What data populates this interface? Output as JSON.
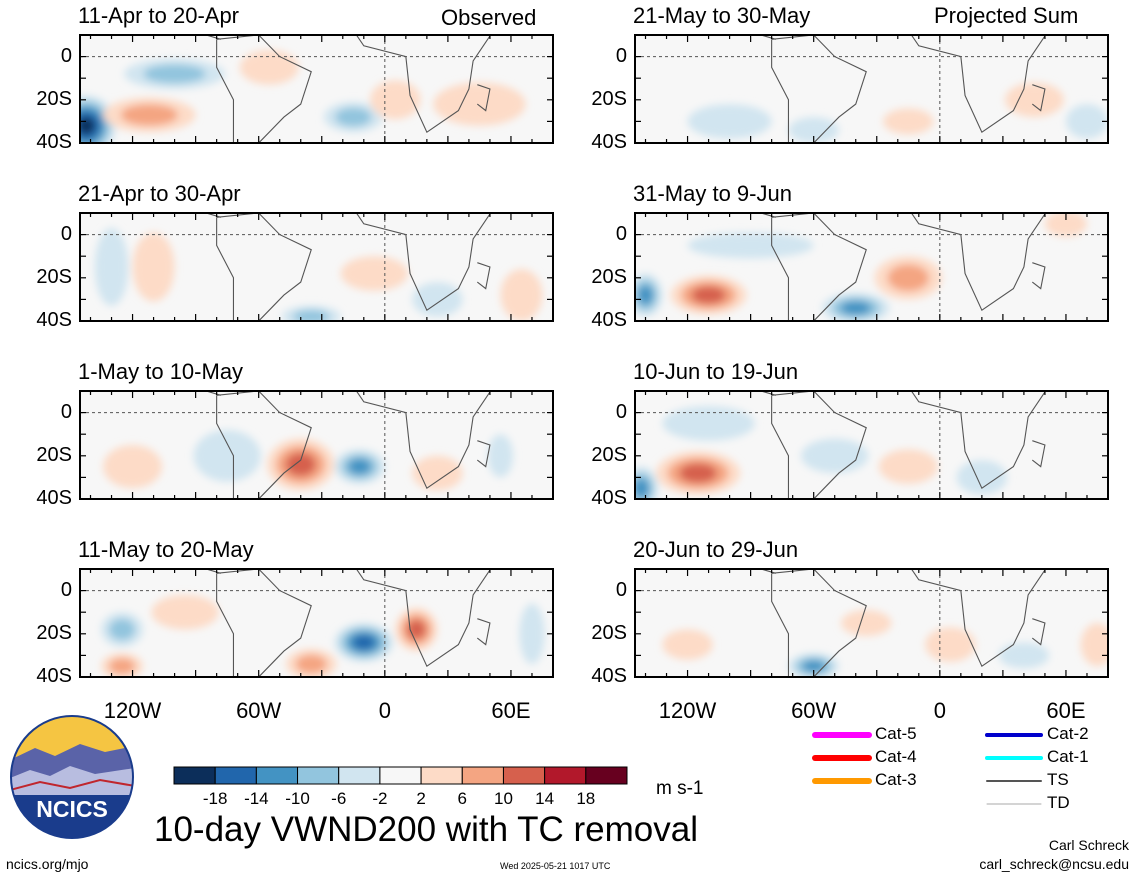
{
  "chart_data": {
    "type": "heatmap",
    "title": "10-day VWND200 with TC removal",
    "units": "m s-1",
    "variable": "VWND200",
    "corner_labels": {
      "observed": "Observed",
      "projected": "Projected Sum"
    },
    "lat_ticks": [
      "0",
      "20S",
      "40S"
    ],
    "lon_ticks": [
      "120W",
      "60W",
      "0",
      "60E"
    ],
    "lon_range": [
      -145,
      80
    ],
    "lat_range": [
      -40,
      10
    ],
    "colorbar": {
      "ticks": [
        "-18",
        "-14",
        "-10",
        "-6",
        "-2",
        "2",
        "6",
        "10",
        "14",
        "18"
      ],
      "colors": [
        "#0c2e5a",
        "#2166ac",
        "#4393c3",
        "#92c5de",
        "#d1e5f0",
        "#f7f7f7",
        "#fddbc7",
        "#f4a582",
        "#d6604d",
        "#b2182b",
        "#67001f"
      ]
    },
    "observed_panels": [
      {
        "label": "11-Apr to 20-Apr",
        "anomalies": [
          {
            "lon": -142,
            "lat": -32,
            "value": -20,
            "rx": 14,
            "ry": 14
          },
          {
            "lon": -112,
            "lat": -27,
            "value": 10,
            "rx": 22,
            "ry": 8
          },
          {
            "lon": -100,
            "lat": -8,
            "value": -8,
            "rx": 24,
            "ry": 7
          },
          {
            "lon": -55,
            "lat": -5,
            "value": 4,
            "rx": 14,
            "ry": 8
          },
          {
            "lon": -15,
            "lat": -28,
            "value": -10,
            "rx": 14,
            "ry": 7
          },
          {
            "lon": 5,
            "lat": -20,
            "value": 5,
            "rx": 12,
            "ry": 9
          },
          {
            "lon": 45,
            "lat": -22,
            "value": 4,
            "rx": 22,
            "ry": 10
          }
        ]
      },
      {
        "label": "21-Apr to 30-Apr",
        "anomalies": [
          {
            "lon": -130,
            "lat": -15,
            "value": -6,
            "rx": 8,
            "ry": 18
          },
          {
            "lon": -110,
            "lat": -15,
            "value": 3,
            "rx": 10,
            "ry": 16
          },
          {
            "lon": -35,
            "lat": -38,
            "value": -8,
            "rx": 14,
            "ry": 5
          },
          {
            "lon": -5,
            "lat": -18,
            "value": 6,
            "rx": 16,
            "ry": 8
          },
          {
            "lon": 25,
            "lat": -30,
            "value": -4,
            "rx": 12,
            "ry": 8
          },
          {
            "lon": 65,
            "lat": -28,
            "value": 7,
            "rx": 10,
            "ry": 12
          }
        ]
      },
      {
        "label": "1-May to 10-May",
        "anomalies": [
          {
            "lon": -120,
            "lat": -25,
            "value": 4,
            "rx": 14,
            "ry": 10
          },
          {
            "lon": -75,
            "lat": -20,
            "value": -6,
            "rx": 16,
            "ry": 12
          },
          {
            "lon": -40,
            "lat": -24,
            "value": 15,
            "rx": 16,
            "ry": 12
          },
          {
            "lon": -12,
            "lat": -25,
            "value": -14,
            "rx": 12,
            "ry": 8
          },
          {
            "lon": 25,
            "lat": -28,
            "value": 4,
            "rx": 12,
            "ry": 8
          },
          {
            "lon": 55,
            "lat": -20,
            "value": -5,
            "rx": 6,
            "ry": 10
          }
        ]
      },
      {
        "label": "11-May to 20-May",
        "anomalies": [
          {
            "lon": -125,
            "lat": -18,
            "value": -10,
            "rx": 10,
            "ry": 8
          },
          {
            "lon": -125,
            "lat": -35,
            "value": 10,
            "rx": 10,
            "ry": 6
          },
          {
            "lon": -95,
            "lat": -10,
            "value": 6,
            "rx": 16,
            "ry": 8
          },
          {
            "lon": -35,
            "lat": -34,
            "value": 10,
            "rx": 12,
            "ry": 7
          },
          {
            "lon": -10,
            "lat": -24,
            "value": -16,
            "rx": 14,
            "ry": 9
          },
          {
            "lon": 15,
            "lat": -18,
            "value": 12,
            "rx": 10,
            "ry": 10
          },
          {
            "lon": 70,
            "lat": -20,
            "value": -6,
            "rx": 6,
            "ry": 14
          }
        ]
      }
    ],
    "projected_panels": [
      {
        "label": "21-May to 30-May",
        "anomalies": [
          {
            "lon": -100,
            "lat": -30,
            "value": -4,
            "rx": 20,
            "ry": 8
          },
          {
            "lon": -60,
            "lat": -34,
            "value": -5,
            "rx": 12,
            "ry": 6
          },
          {
            "lon": -15,
            "lat": -30,
            "value": 5,
            "rx": 12,
            "ry": 6
          },
          {
            "lon": 45,
            "lat": -20,
            "value": 4,
            "rx": 14,
            "ry": 8
          },
          {
            "lon": 70,
            "lat": -30,
            "value": -4,
            "rx": 10,
            "ry": 8
          }
        ]
      },
      {
        "label": "31-May to 9-Jun",
        "anomalies": [
          {
            "lon": -140,
            "lat": -28,
            "value": -14,
            "rx": 8,
            "ry": 10
          },
          {
            "lon": -110,
            "lat": -28,
            "value": 12,
            "rx": 18,
            "ry": 9
          },
          {
            "lon": -40,
            "lat": -34,
            "value": -14,
            "rx": 16,
            "ry": 7
          },
          {
            "lon": -15,
            "lat": -20,
            "value": 8,
            "rx": 16,
            "ry": 10
          },
          {
            "lon": -90,
            "lat": -5,
            "value": -4,
            "rx": 30,
            "ry": 6
          },
          {
            "lon": 60,
            "lat": 5,
            "value": 4,
            "rx": 10,
            "ry": 6
          }
        ]
      },
      {
        "label": "10-Jun to 19-Jun",
        "anomalies": [
          {
            "lon": -142,
            "lat": -35,
            "value": -14,
            "rx": 8,
            "ry": 10
          },
          {
            "lon": -115,
            "lat": -28,
            "value": 12,
            "rx": 20,
            "ry": 10
          },
          {
            "lon": -110,
            "lat": -5,
            "value": -6,
            "rx": 22,
            "ry": 8
          },
          {
            "lon": -50,
            "lat": -20,
            "value": -6,
            "rx": 16,
            "ry": 8
          },
          {
            "lon": -15,
            "lat": -25,
            "value": 6,
            "rx": 14,
            "ry": 8
          },
          {
            "lon": 20,
            "lat": -30,
            "value": -5,
            "rx": 12,
            "ry": 8
          }
        ]
      },
      {
        "label": "20-Jun to 29-Jun",
        "anomalies": [
          {
            "lon": -120,
            "lat": -25,
            "value": 6,
            "rx": 12,
            "ry": 7
          },
          {
            "lon": -60,
            "lat": -35,
            "value": -12,
            "rx": 12,
            "ry": 6
          },
          {
            "lon": -35,
            "lat": -15,
            "value": 4,
            "rx": 12,
            "ry": 6
          },
          {
            "lon": 5,
            "lat": -25,
            "value": 6,
            "rx": 12,
            "ry": 8
          },
          {
            "lon": 40,
            "lat": -30,
            "value": -6,
            "rx": 12,
            "ry": 6
          },
          {
            "lon": 75,
            "lat": -25,
            "value": 5,
            "rx": 8,
            "ry": 10
          }
        ]
      }
    ],
    "tc_legend": [
      {
        "label": "Cat-5",
        "color": "#ff00ff"
      },
      {
        "label": "Cat-4",
        "color": "#ff0000"
      },
      {
        "label": "Cat-3",
        "color": "#ff9900"
      },
      {
        "label": "Cat-2",
        "color": "#0000cc"
      },
      {
        "label": "Cat-1",
        "color": "#00ffff"
      },
      {
        "label": "TS",
        "color": "#555555"
      },
      {
        "label": "TD",
        "color": "#aaaaaa"
      }
    ]
  },
  "logo": {
    "text": "NCICS"
  },
  "footer": {
    "url": "ncics.org/mjo",
    "timestamp": "Wed 2025-05-21 1017 UTC",
    "author": "Carl Schreck",
    "email": "carl_schreck@ncsu.edu"
  }
}
